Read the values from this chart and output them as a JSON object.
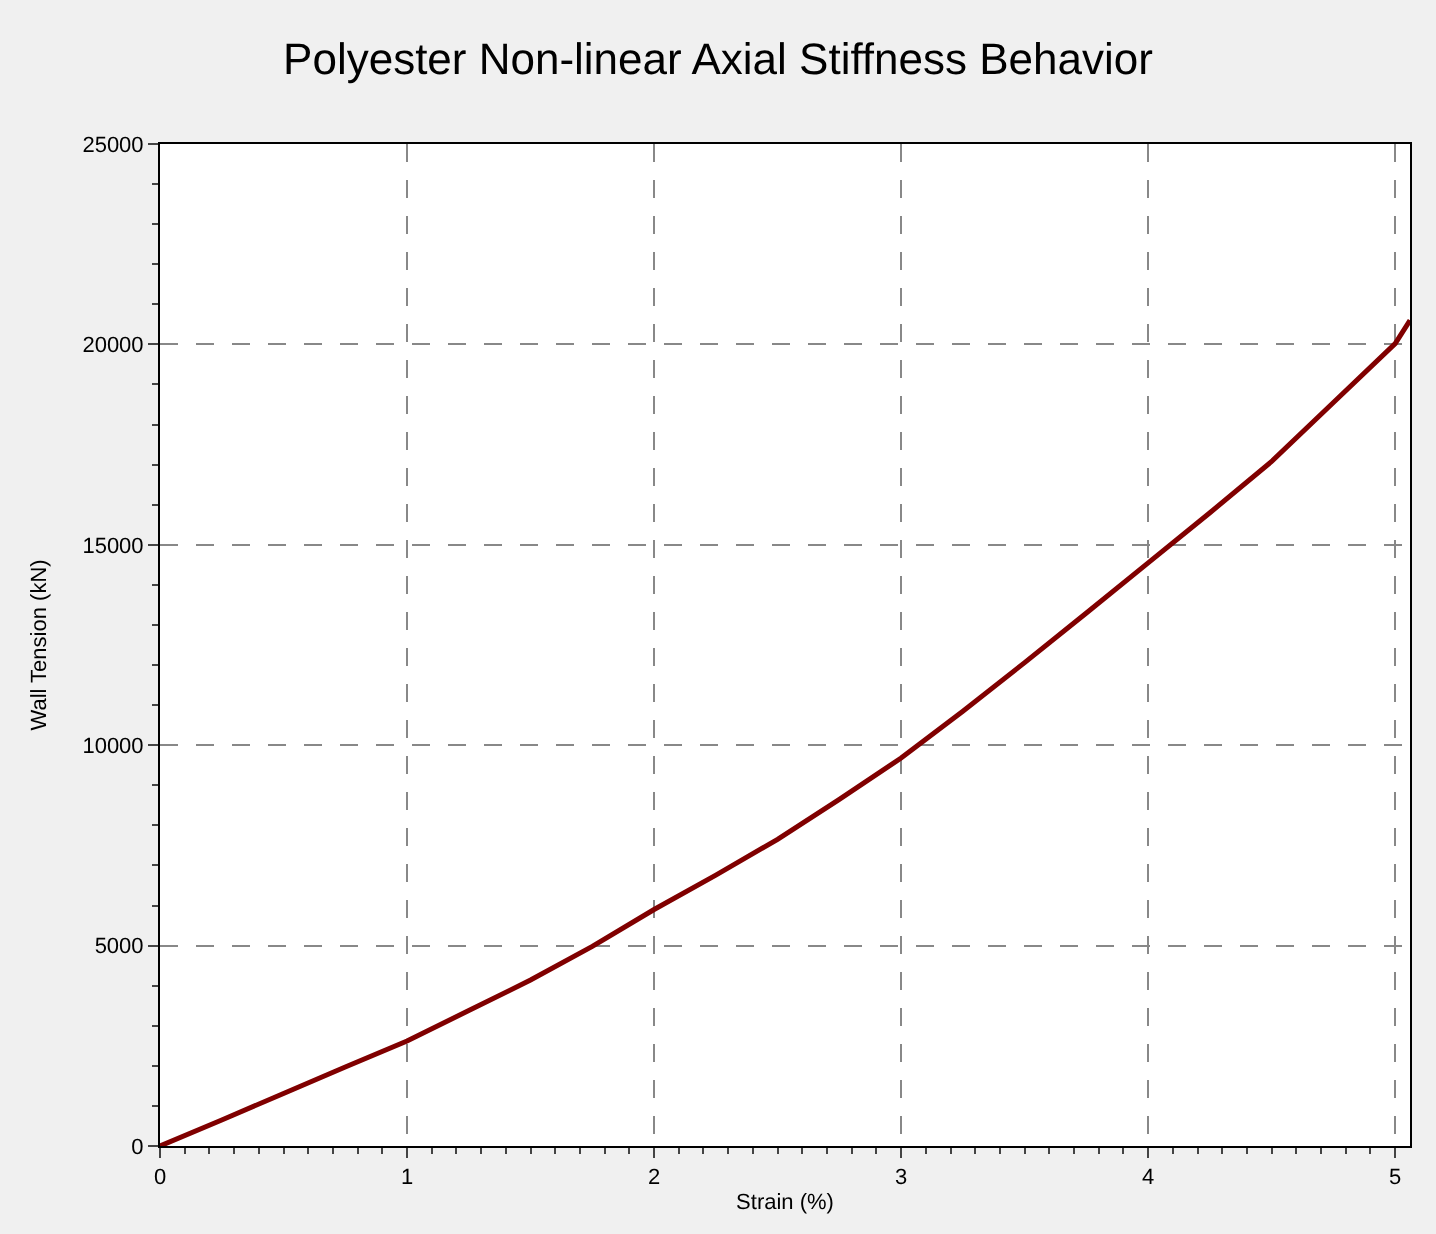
{
  "chart_data": {
    "type": "line",
    "title": "Polyester Non-linear Axial Stiffness Behavior",
    "xlabel": "Strain (%)",
    "ylabel": "Wall Tension (kN)",
    "x": [
      0,
      0.25,
      0.5,
      0.75,
      1,
      1.25,
      1.5,
      1.75,
      2,
      2.25,
      2.5,
      2.75,
      3,
      3.25,
      3.5,
      3.75,
      4,
      4.25,
      4.5,
      4.75,
      5,
      5.06
    ],
    "series": [
      {
        "color": "#800000",
        "values": [
          0,
          650,
          1310,
          1970,
          2620,
          3380,
          4140,
          4980,
          5900,
          6760,
          7650,
          8650,
          9680,
          10850,
          12060,
          13300,
          14550,
          15800,
          17080,
          18550,
          20020,
          20600
        ]
      }
    ],
    "xlim": [
      0,
      5.06
    ],
    "ylim": [
      0,
      25000
    ],
    "xticks": [
      0,
      1,
      2,
      3,
      4,
      5
    ],
    "yticks": [
      0,
      5000,
      10000,
      15000,
      20000,
      25000
    ],
    "grid": true,
    "marker": "none",
    "line_style": "solid"
  }
}
